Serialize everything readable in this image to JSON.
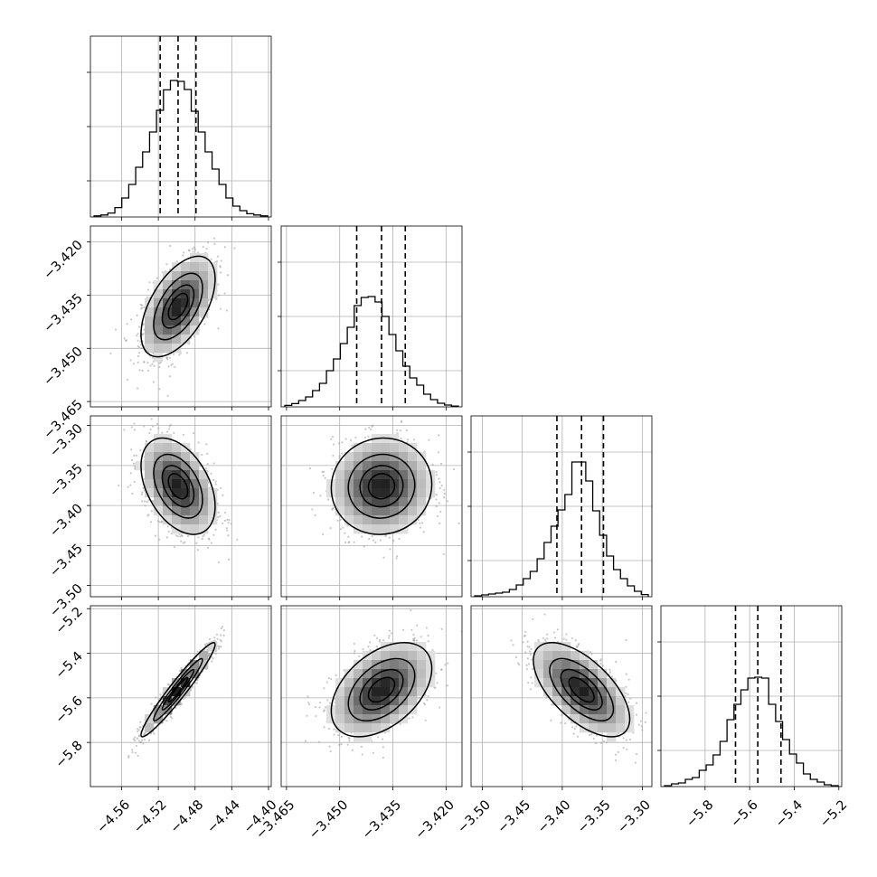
{
  "chart_data": {
    "type": "corner",
    "parameters": [
      {
        "ticks": [
          -4.56,
          -4.52,
          -4.48,
          -4.44,
          -4.4
        ],
        "tick_labels": [
          "−4.56",
          "−4.52",
          "−4.48",
          "−4.44",
          "−4.40"
        ],
        "range": [
          -4.594,
          -4.397
        ],
        "quantiles": [
          -4.518,
          -4.4985,
          -4.479
        ],
        "histogram": [
          0.006,
          0.011,
          0.022,
          0.052,
          0.105,
          0.18,
          0.275,
          0.36,
          0.47,
          0.59,
          0.703,
          0.755,
          0.75,
          0.705,
          0.585,
          0.47,
          0.36,
          0.265,
          0.18,
          0.105,
          0.06,
          0.035,
          0.018,
          0.011,
          0.006
        ]
      },
      {
        "ticks": [
          -3.465,
          -3.45,
          -3.435,
          -3.42
        ],
        "tick_labels": [
          "−3.465",
          "−3.450",
          "−3.435",
          "−3.420"
        ],
        "range": [
          -3.4665,
          -3.4155
        ],
        "quantiles": [
          -3.4452,
          -3.4382,
          -3.4315
        ],
        "histogram": [
          0.008,
          0.018,
          0.035,
          0.055,
          0.09,
          0.13,
          0.2,
          0.265,
          0.35,
          0.44,
          0.56,
          0.605,
          0.61,
          0.58,
          0.5,
          0.4,
          0.31,
          0.225,
          0.16,
          0.12,
          0.07,
          0.04,
          0.02,
          0.01,
          0.004
        ]
      },
      {
        "ticks": [
          -3.5,
          -3.45,
          -3.4,
          -3.35,
          -3.3
        ],
        "tick_labels": [
          "−3.50",
          "−3.45",
          "−3.40",
          "−3.35",
          "−3.30"
        ],
        "range": [
          -3.514,
          -3.288
        ],
        "quantiles": [
          -3.4067,
          -3.3759,
          -3.3485
        ],
        "histogram": [
          0.005,
          0.01,
          0.015,
          0.02,
          0.025,
          0.04,
          0.065,
          0.1,
          0.14,
          0.21,
          0.3,
          0.39,
          0.48,
          0.565,
          0.745,
          0.745,
          0.64,
          0.475,
          0.34,
          0.225,
          0.15,
          0.1,
          0.06,
          0.03,
          0.012
        ]
      },
      {
        "ticks": [
          -5.8,
          -5.6,
          -5.4,
          -5.2
        ],
        "tick_labels": [
          "−5.8",
          "−5.6",
          "−5.4",
          "−5.2"
        ],
        "range": [
          -5.998,
          -5.187
        ],
        "quantiles": [
          -5.6635,
          -5.5635,
          -5.4595
        ],
        "histogram": [
          0.005,
          0.015,
          0.02,
          0.04,
          0.05,
          0.09,
          0.12,
          0.175,
          0.25,
          0.37,
          0.455,
          0.535,
          0.6,
          0.605,
          0.6,
          0.455,
          0.36,
          0.26,
          0.18,
          0.13,
          0.07,
          0.04,
          0.025,
          0.01,
          0.005
        ]
      }
    ],
    "pairs": [
      {
        "row": 1,
        "col": 0,
        "corr": 0.55
      },
      {
        "row": 2,
        "col": 0,
        "corr": -0.42
      },
      {
        "row": 2,
        "col": 1,
        "corr": 0.04
      },
      {
        "row": 3,
        "col": 0,
        "corr": 0.96
      },
      {
        "row": 3,
        "col": 1,
        "corr": 0.45
      },
      {
        "row": 3,
        "col": 2,
        "corr": -0.62
      }
    ],
    "contour_levels_sigma": [
      0.5,
      1.0,
      1.5,
      2.0
    ],
    "grid": true
  }
}
